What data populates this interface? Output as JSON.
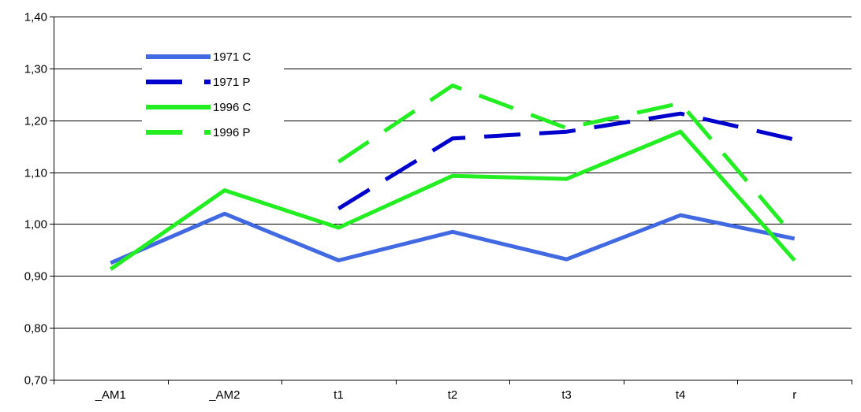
{
  "chart_data": {
    "type": "line",
    "categories": [
      "_AM1",
      "_AM2",
      "t1",
      "t2",
      "t3",
      "t4",
      "r"
    ],
    "ylim": [
      0.7,
      1.4
    ],
    "yticks": [
      "0,70",
      "0,80",
      "0,90",
      "1,00",
      "1,10",
      "1,20",
      "1,30",
      "1,40"
    ],
    "grid": "horizontal",
    "legend_position": "top-left",
    "series": [
      {
        "name": "1971 C",
        "color": "#4169E1",
        "dash": false,
        "values": [
          0.925,
          1.02,
          0.93,
          0.985,
          0.932,
          1.017,
          0.972
        ]
      },
      {
        "name": "1971 P",
        "color": "#0000CD",
        "dash": true,
        "values": [
          null,
          null,
          1.03,
          1.165,
          1.178,
          1.213,
          1.163
        ]
      },
      {
        "name": "1996 C",
        "color": "#22EE22",
        "dash": false,
        "values": [
          0.913,
          1.065,
          0.993,
          1.093,
          1.087,
          1.178,
          0.93
        ]
      },
      {
        "name": "1996 P",
        "color": "#22EE22",
        "dash": true,
        "values": [
          null,
          null,
          1.12,
          1.267,
          1.185,
          1.233,
          0.975
        ]
      }
    ]
  }
}
